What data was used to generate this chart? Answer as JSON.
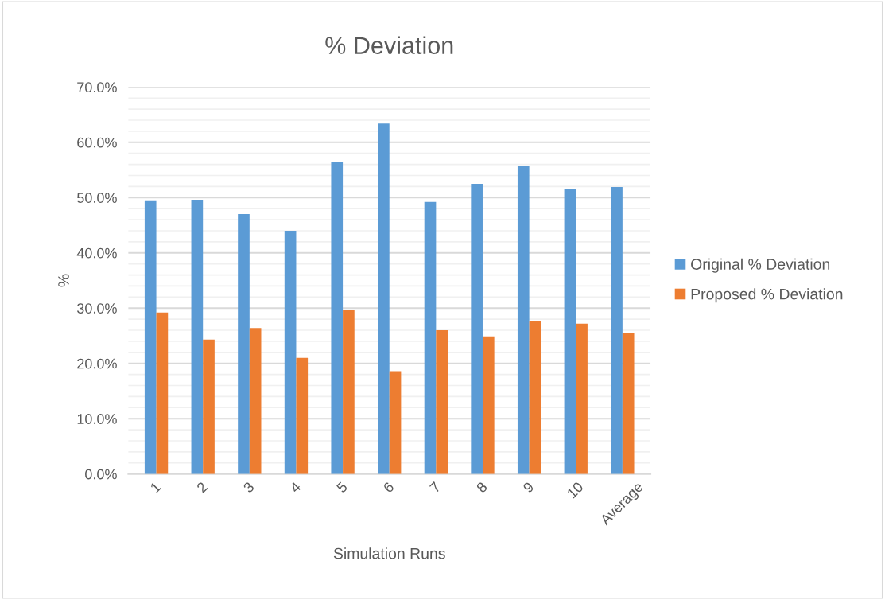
{
  "chart_data": {
    "type": "bar",
    "title": "% Deviation",
    "xlabel": "Simulation Runs",
    "ylabel": "%",
    "categories": [
      "1",
      "2",
      "3",
      "4",
      "5",
      "6",
      "7",
      "8",
      "9",
      "10",
      "Average"
    ],
    "series": [
      {
        "name": "Original % Deviation",
        "color": "#5b9bd5",
        "values": [
          49.5,
          49.6,
          47.0,
          44.0,
          56.4,
          63.4,
          49.2,
          52.5,
          55.8,
          51.6,
          51.9
        ]
      },
      {
        "name": "Proposed % Deviation",
        "color": "#ed7d31",
        "values": [
          29.2,
          24.3,
          26.4,
          21.0,
          29.6,
          18.6,
          26.0,
          24.9,
          27.7,
          27.2,
          25.5
        ]
      }
    ],
    "ylim": [
      0,
      70
    ],
    "yticks": [
      {
        "value": 0,
        "label": "0.0%"
      },
      {
        "value": 2,
        "label": null
      },
      {
        "value": 4,
        "label": null
      },
      {
        "value": 6,
        "label": null
      },
      {
        "value": 8,
        "label": null
      },
      {
        "value": 10,
        "label": "10.0%"
      },
      {
        "value": 12,
        "label": null
      },
      {
        "value": 14,
        "label": null
      },
      {
        "value": 16,
        "label": null
      },
      {
        "value": 18,
        "label": null
      },
      {
        "value": 20,
        "label": "20.0%"
      },
      {
        "value": 22,
        "label": null
      },
      {
        "value": 24,
        "label": null
      },
      {
        "value": 26,
        "label": null
      },
      {
        "value": 28,
        "label": null
      },
      {
        "value": 30,
        "label": "30.0%"
      },
      {
        "value": 32,
        "label": null
      },
      {
        "value": 34,
        "label": null
      },
      {
        "value": 36,
        "label": null
      },
      {
        "value": 38,
        "label": null
      },
      {
        "value": 40,
        "label": "40.0%"
      },
      {
        "value": 42,
        "label": null
      },
      {
        "value": 44,
        "label": null
      },
      {
        "value": 46,
        "label": null
      },
      {
        "value": 48,
        "label": null
      },
      {
        "value": 50,
        "label": "50.0%"
      },
      {
        "value": 52,
        "label": null
      },
      {
        "value": 54,
        "label": null
      },
      {
        "value": 56,
        "label": null
      },
      {
        "value": 58,
        "label": null
      },
      {
        "value": 60,
        "label": "60.0%"
      },
      {
        "value": 62,
        "label": null
      },
      {
        "value": 64,
        "label": null
      },
      {
        "value": 66,
        "label": null
      },
      {
        "value": 68,
        "label": null
      },
      {
        "value": 70,
        "label": "70.0%"
      }
    ],
    "grid": "y",
    "legend": "right"
  }
}
